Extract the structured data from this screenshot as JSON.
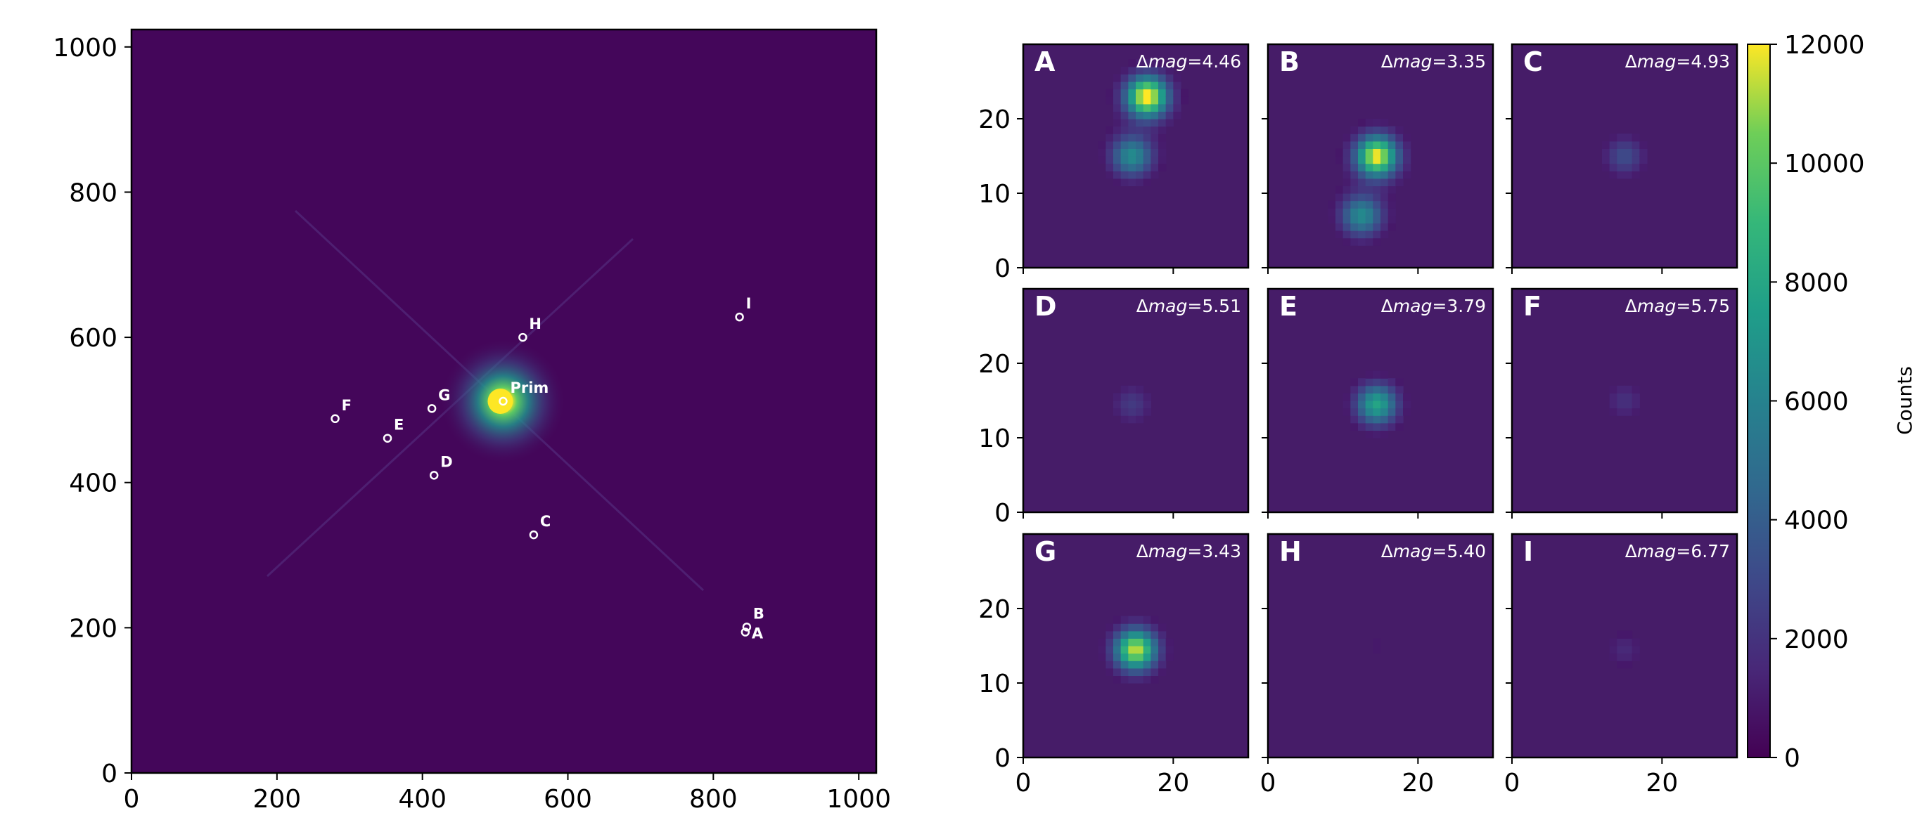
{
  "chart_data": [
    {
      "type": "heatmap",
      "title": "",
      "xlabel": "",
      "ylabel": "",
      "xlim": [
        0,
        1024
      ],
      "ylim": [
        0,
        1024
      ],
      "xticks": [
        "0",
        "200",
        "400",
        "600",
        "800",
        "1000"
      ],
      "yticks": [
        "0",
        "200",
        "400",
        "600",
        "800",
        "1000"
      ],
      "background_color": "#44065a",
      "primary": {
        "label": "Prim",
        "x": 511,
        "y": 512
      },
      "sources": [
        {
          "label": "A",
          "x": 844,
          "y": 194
        },
        {
          "label": "B",
          "x": 846,
          "y": 201
        },
        {
          "label": "C",
          "x": 553,
          "y": 328
        },
        {
          "label": "D",
          "x": 416,
          "y": 410
        },
        {
          "label": "E",
          "x": 352,
          "y": 461
        },
        {
          "label": "F",
          "x": 280,
          "y": 488
        },
        {
          "label": "G",
          "x": 413,
          "y": 502
        },
        {
          "label": "H",
          "x": 538,
          "y": 600
        },
        {
          "label": "I",
          "x": 836,
          "y": 628
        }
      ]
    },
    {
      "type": "heatmap",
      "subplots": "3x3",
      "xlim": [
        0,
        30
      ],
      "ylim": [
        0,
        30
      ],
      "xticks": [
        "0",
        "20"
      ],
      "yticks": [
        "0",
        "10",
        "20"
      ],
      "dmag_prefix": "Δmag=",
      "panels": [
        {
          "letter": "A",
          "dmag": "4.46",
          "stars": [
            {
              "x": 16.5,
              "y": 23,
              "peak": 12000
            },
            {
              "x": 14.5,
              "y": 15,
              "peak": 6000
            }
          ]
        },
        {
          "letter": "B",
          "dmag": "3.35",
          "stars": [
            {
              "x": 14.5,
              "y": 15,
              "peak": 11500
            },
            {
              "x": 12.5,
              "y": 7,
              "peak": 6000
            }
          ]
        },
        {
          "letter": "C",
          "dmag": "4.93",
          "stars": [
            {
              "x": 15,
              "y": 15,
              "peak": 3000
            }
          ]
        },
        {
          "letter": "D",
          "dmag": "5.51",
          "stars": [
            {
              "x": 14.5,
              "y": 14.5,
              "peak": 2200
            }
          ]
        },
        {
          "letter": "E",
          "dmag": "3.79",
          "stars": [
            {
              "x": 14.5,
              "y": 14.5,
              "peak": 7500
            }
          ]
        },
        {
          "letter": "F",
          "dmag": "5.75",
          "stars": [
            {
              "x": 15,
              "y": 15,
              "peak": 1800
            }
          ]
        },
        {
          "letter": "G",
          "dmag": "3.43",
          "stars": [
            {
              "x": 15,
              "y": 14.5,
              "peak": 11000
            }
          ]
        },
        {
          "letter": "H",
          "dmag": "5.40",
          "stars": [
            {
              "x": 14.5,
              "y": 15,
              "peak": 900
            }
          ]
        },
        {
          "letter": "I",
          "dmag": "6.77",
          "stars": [
            {
              "x": 15,
              "y": 14.5,
              "peak": 1500
            }
          ]
        }
      ],
      "colorbar": {
        "label": "Counts",
        "range": [
          0,
          12000
        ],
        "ticks": [
          "0",
          "2000",
          "4000",
          "6000",
          "8000",
          "10000",
          "12000"
        ],
        "colormap": "viridis"
      }
    }
  ]
}
